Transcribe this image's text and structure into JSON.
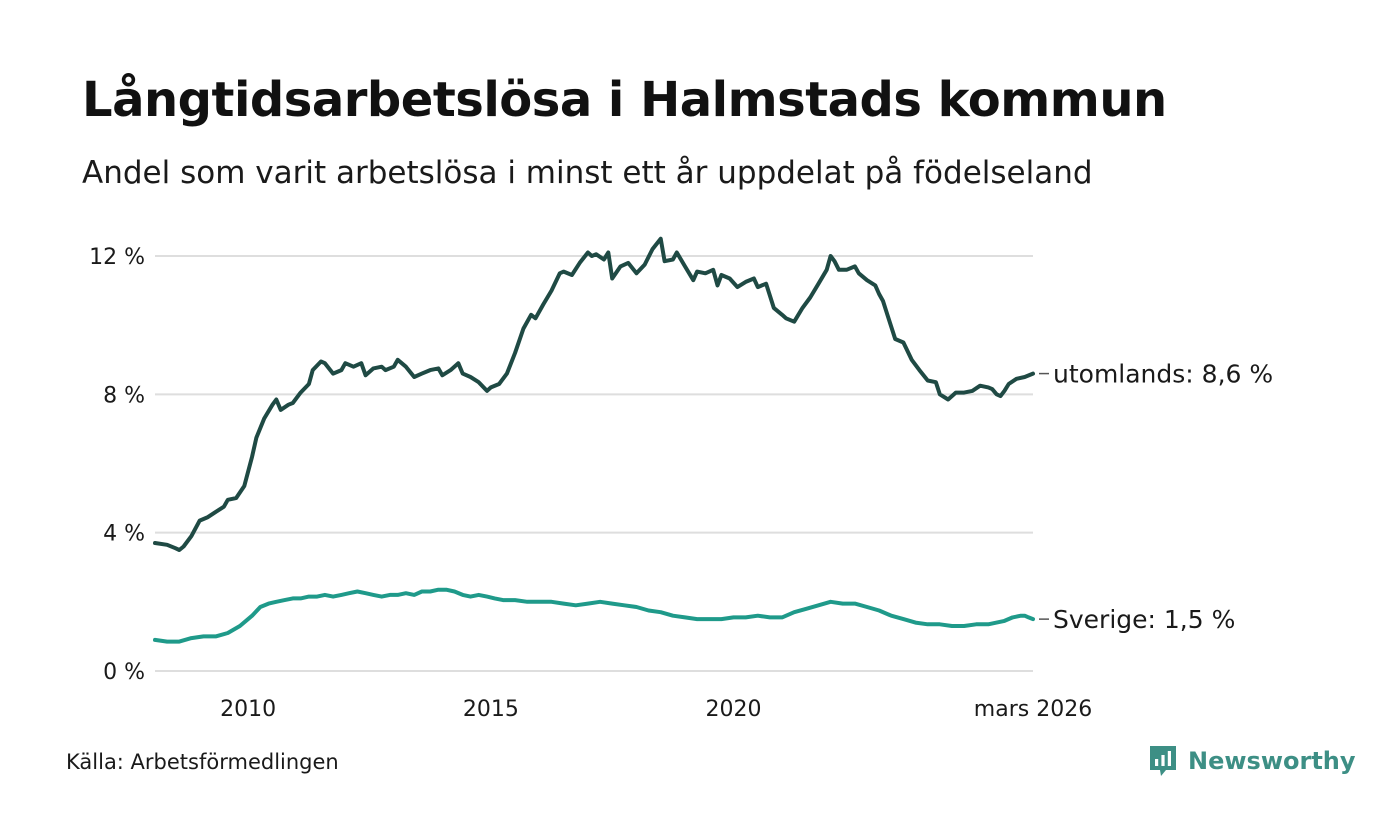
{
  "title": "Långtidsarbetslösa i Halmstads kommun",
  "subtitle": "Andel som varit arbetslösa i minst ett år uppdelat på födelseland",
  "source": "Källa: Arbetsförmedlingen",
  "brand": {
    "name": "Newsworthy",
    "icon": "newsworthy-logo-icon",
    "color": "#3d8f85"
  },
  "chart_data": {
    "type": "line",
    "title": "Långtidsarbetslösa i Halmstads kommun",
    "subtitle": "Andel som varit arbetslösa i minst ett år uppdelat på födelseland",
    "x_unit": "decimal year",
    "xlim": [
      2008.08,
      2026.17
    ],
    "ylim": [
      0,
      12.5
    ],
    "y_ticks": [
      {
        "value": 0,
        "label": "0 %"
      },
      {
        "value": 4,
        "label": "4 %"
      },
      {
        "value": 8,
        "label": "8 %"
      },
      {
        "value": 12,
        "label": "12 %"
      }
    ],
    "x_ticks": [
      {
        "value": 2010,
        "label": "2010"
      },
      {
        "value": 2015,
        "label": "2015"
      },
      {
        "value": 2020,
        "label": "2020"
      },
      {
        "value": 2026.17,
        "label": "mars 2026"
      }
    ],
    "grid": true,
    "legend": "direct labels at line ends (right)",
    "series": [
      {
        "name": "utomlands",
        "end_label": "utomlands: 8,6 %",
        "color": "#1f4a44",
        "points": [
          [
            2008.08,
            3.7
          ],
          [
            2008.33,
            3.65
          ],
          [
            2008.5,
            3.55
          ],
          [
            2008.58,
            3.5
          ],
          [
            2008.67,
            3.6
          ],
          [
            2008.83,
            3.9
          ],
          [
            2009.0,
            4.35
          ],
          [
            2009.17,
            4.45
          ],
          [
            2009.33,
            4.6
          ],
          [
            2009.5,
            4.75
          ],
          [
            2009.58,
            4.95
          ],
          [
            2009.75,
            5.0
          ],
          [
            2009.92,
            5.35
          ],
          [
            2010.08,
            6.2
          ],
          [
            2010.17,
            6.75
          ],
          [
            2010.33,
            7.3
          ],
          [
            2010.5,
            7.7
          ],
          [
            2010.58,
            7.85
          ],
          [
            2010.67,
            7.55
          ],
          [
            2010.83,
            7.7
          ],
          [
            2010.92,
            7.75
          ],
          [
            2011.08,
            8.05
          ],
          [
            2011.25,
            8.3
          ],
          [
            2011.33,
            8.7
          ],
          [
            2011.5,
            8.95
          ],
          [
            2011.58,
            8.9
          ],
          [
            2011.75,
            8.6
          ],
          [
            2011.92,
            8.7
          ],
          [
            2012.0,
            8.9
          ],
          [
            2012.17,
            8.8
          ],
          [
            2012.33,
            8.9
          ],
          [
            2012.42,
            8.55
          ],
          [
            2012.58,
            8.75
          ],
          [
            2012.75,
            8.8
          ],
          [
            2012.83,
            8.7
          ],
          [
            2013.0,
            8.8
          ],
          [
            2013.08,
            9.0
          ],
          [
            2013.25,
            8.8
          ],
          [
            2013.42,
            8.5
          ],
          [
            2013.58,
            8.6
          ],
          [
            2013.75,
            8.7
          ],
          [
            2013.92,
            8.75
          ],
          [
            2014.0,
            8.55
          ],
          [
            2014.17,
            8.7
          ],
          [
            2014.33,
            8.9
          ],
          [
            2014.42,
            8.6
          ],
          [
            2014.58,
            8.5
          ],
          [
            2014.75,
            8.35
          ],
          [
            2014.92,
            8.1
          ],
          [
            2015.0,
            8.2
          ],
          [
            2015.17,
            8.3
          ],
          [
            2015.33,
            8.6
          ],
          [
            2015.5,
            9.2
          ],
          [
            2015.67,
            9.9
          ],
          [
            2015.83,
            10.3
          ],
          [
            2015.92,
            10.2
          ],
          [
            2016.08,
            10.6
          ],
          [
            2016.25,
            11.0
          ],
          [
            2016.42,
            11.5
          ],
          [
            2016.5,
            11.55
          ],
          [
            2016.67,
            11.45
          ],
          [
            2016.83,
            11.8
          ],
          [
            2017.0,
            12.1
          ],
          [
            2017.08,
            12.0
          ],
          [
            2017.17,
            12.05
          ],
          [
            2017.33,
            11.9
          ],
          [
            2017.42,
            12.1
          ],
          [
            2017.5,
            11.35
          ],
          [
            2017.67,
            11.7
          ],
          [
            2017.83,
            11.8
          ],
          [
            2018.0,
            11.5
          ],
          [
            2018.17,
            11.75
          ],
          [
            2018.33,
            12.2
          ],
          [
            2018.5,
            12.5
          ],
          [
            2018.58,
            11.85
          ],
          [
            2018.75,
            11.9
          ],
          [
            2018.83,
            12.1
          ],
          [
            2019.0,
            11.7
          ],
          [
            2019.17,
            11.3
          ],
          [
            2019.25,
            11.55
          ],
          [
            2019.42,
            11.5
          ],
          [
            2019.58,
            11.6
          ],
          [
            2019.67,
            11.15
          ],
          [
            2019.75,
            11.45
          ],
          [
            2019.92,
            11.35
          ],
          [
            2020.08,
            11.1
          ],
          [
            2020.25,
            11.25
          ],
          [
            2020.42,
            11.35
          ],
          [
            2020.5,
            11.1
          ],
          [
            2020.67,
            11.2
          ],
          [
            2020.83,
            10.5
          ],
          [
            2021.0,
            10.3
          ],
          [
            2021.08,
            10.2
          ],
          [
            2021.25,
            10.1
          ],
          [
            2021.42,
            10.5
          ],
          [
            2021.58,
            10.8
          ],
          [
            2021.75,
            11.2
          ],
          [
            2021.92,
            11.6
          ],
          [
            2022.0,
            12.0
          ],
          [
            2022.08,
            11.85
          ],
          [
            2022.17,
            11.6
          ],
          [
            2022.33,
            11.6
          ],
          [
            2022.5,
            11.7
          ],
          [
            2022.58,
            11.5
          ],
          [
            2022.75,
            11.3
          ],
          [
            2022.92,
            11.15
          ],
          [
            2023.0,
            10.9
          ],
          [
            2023.08,
            10.7
          ],
          [
            2023.17,
            10.3
          ],
          [
            2023.33,
            9.6
          ],
          [
            2023.5,
            9.5
          ],
          [
            2023.67,
            9.0
          ],
          [
            2023.83,
            8.7
          ],
          [
            2024.0,
            8.4
          ],
          [
            2024.17,
            8.35
          ],
          [
            2024.25,
            8.0
          ],
          [
            2024.42,
            7.85
          ],
          [
            2024.58,
            8.05
          ],
          [
            2024.75,
            8.05
          ],
          [
            2024.92,
            8.1
          ],
          [
            2025.08,
            8.25
          ],
          [
            2025.25,
            8.2
          ],
          [
            2025.33,
            8.15
          ],
          [
            2025.42,
            8.0
          ],
          [
            2025.5,
            7.95
          ],
          [
            2025.58,
            8.1
          ],
          [
            2025.67,
            8.3
          ],
          [
            2025.83,
            8.45
          ],
          [
            2026.0,
            8.5
          ],
          [
            2026.17,
            8.6
          ]
        ]
      },
      {
        "name": "Sverige",
        "end_label": "Sverige: 1,5 %",
        "color": "#1f9a8a",
        "points": [
          [
            2008.08,
            0.9
          ],
          [
            2008.33,
            0.85
          ],
          [
            2008.58,
            0.85
          ],
          [
            2008.83,
            0.95
          ],
          [
            2009.08,
            1.0
          ],
          [
            2009.33,
            1.0
          ],
          [
            2009.58,
            1.1
          ],
          [
            2009.83,
            1.3
          ],
          [
            2010.08,
            1.6
          ],
          [
            2010.25,
            1.85
          ],
          [
            2010.42,
            1.95
          ],
          [
            2010.58,
            2.0
          ],
          [
            2010.75,
            2.05
          ],
          [
            2010.92,
            2.1
          ],
          [
            2011.08,
            2.1
          ],
          [
            2011.25,
            2.15
          ],
          [
            2011.42,
            2.15
          ],
          [
            2011.58,
            2.2
          ],
          [
            2011.75,
            2.15
          ],
          [
            2011.92,
            2.2
          ],
          [
            2012.08,
            2.25
          ],
          [
            2012.25,
            2.3
          ],
          [
            2012.42,
            2.25
          ],
          [
            2012.58,
            2.2
          ],
          [
            2012.75,
            2.15
          ],
          [
            2012.92,
            2.2
          ],
          [
            2013.08,
            2.2
          ],
          [
            2013.25,
            2.25
          ],
          [
            2013.42,
            2.2
          ],
          [
            2013.58,
            2.3
          ],
          [
            2013.75,
            2.3
          ],
          [
            2013.92,
            2.35
          ],
          [
            2014.08,
            2.35
          ],
          [
            2014.25,
            2.3
          ],
          [
            2014.42,
            2.2
          ],
          [
            2014.58,
            2.15
          ],
          [
            2014.75,
            2.2
          ],
          [
            2014.92,
            2.15
          ],
          [
            2015.08,
            2.1
          ],
          [
            2015.25,
            2.05
          ],
          [
            2015.5,
            2.05
          ],
          [
            2015.75,
            2.0
          ],
          [
            2016.0,
            2.0
          ],
          [
            2016.25,
            2.0
          ],
          [
            2016.5,
            1.95
          ],
          [
            2016.75,
            1.9
          ],
          [
            2017.0,
            1.95
          ],
          [
            2017.25,
            2.0
          ],
          [
            2017.5,
            1.95
          ],
          [
            2017.75,
            1.9
          ],
          [
            2018.0,
            1.85
          ],
          [
            2018.25,
            1.75
          ],
          [
            2018.5,
            1.7
          ],
          [
            2018.75,
            1.6
          ],
          [
            2019.0,
            1.55
          ],
          [
            2019.25,
            1.5
          ],
          [
            2019.5,
            1.5
          ],
          [
            2019.75,
            1.5
          ],
          [
            2020.0,
            1.55
          ],
          [
            2020.25,
            1.55
          ],
          [
            2020.5,
            1.6
          ],
          [
            2020.75,
            1.55
          ],
          [
            2021.0,
            1.55
          ],
          [
            2021.25,
            1.7
          ],
          [
            2021.5,
            1.8
          ],
          [
            2021.75,
            1.9
          ],
          [
            2022.0,
            2.0
          ],
          [
            2022.25,
            1.95
          ],
          [
            2022.5,
            1.95
          ],
          [
            2022.75,
            1.85
          ],
          [
            2023.0,
            1.75
          ],
          [
            2023.25,
            1.6
          ],
          [
            2023.5,
            1.5
          ],
          [
            2023.75,
            1.4
          ],
          [
            2024.0,
            1.35
          ],
          [
            2024.25,
            1.35
          ],
          [
            2024.5,
            1.3
          ],
          [
            2024.75,
            1.3
          ],
          [
            2025.0,
            1.35
          ],
          [
            2025.25,
            1.35
          ],
          [
            2025.42,
            1.4
          ],
          [
            2025.58,
            1.45
          ],
          [
            2025.75,
            1.55
          ],
          [
            2025.92,
            1.6
          ],
          [
            2026.0,
            1.6
          ],
          [
            2026.08,
            1.55
          ],
          [
            2026.17,
            1.5
          ]
        ]
      }
    ]
  }
}
